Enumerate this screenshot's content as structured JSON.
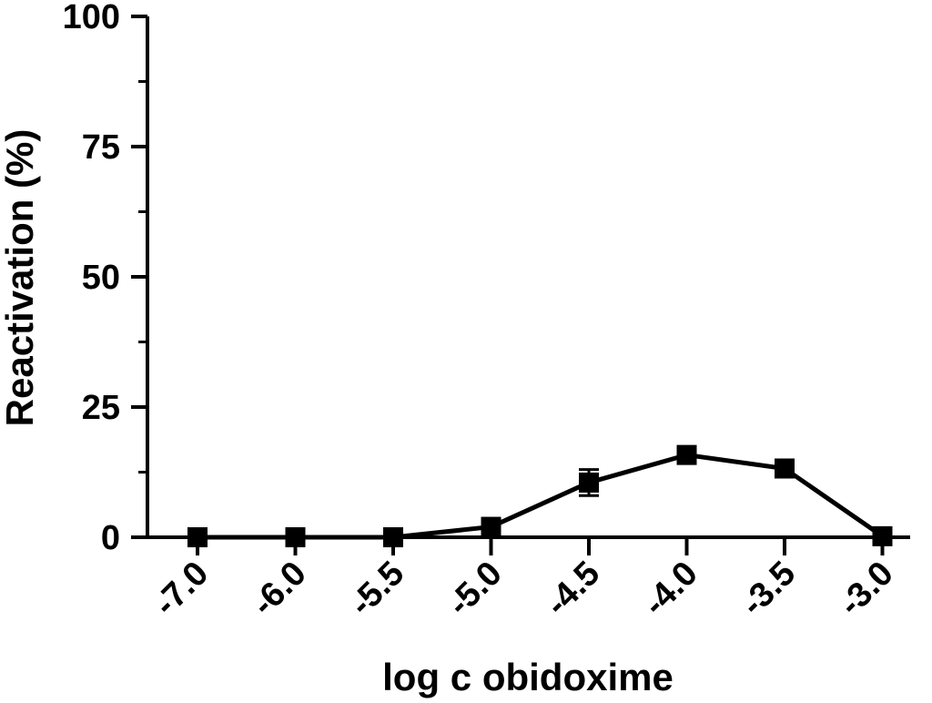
{
  "chart_data": {
    "type": "line",
    "title": "",
    "xlabel": "log c obidoxime",
    "ylabel": "Reactivation (%)",
    "categories": [
      "-7.0",
      "-6.0",
      "-5.5",
      "-5.0",
      "-4.5",
      "-4.0",
      "-3.5",
      "-3.0"
    ],
    "values": [
      0,
      0,
      0,
      2,
      10.5,
      15.8,
      13.2,
      0.2
    ],
    "errors": [
      0,
      0,
      0,
      0,
      2.5,
      0,
      0,
      0
    ],
    "ylim": [
      0,
      100
    ],
    "yticks": [
      "0",
      "25",
      "50",
      "75",
      "100"
    ],
    "ytick_values": [
      0,
      25,
      50,
      75,
      100
    ],
    "grid": false,
    "legend": "none",
    "marker": "square",
    "line_color": "#000000"
  }
}
